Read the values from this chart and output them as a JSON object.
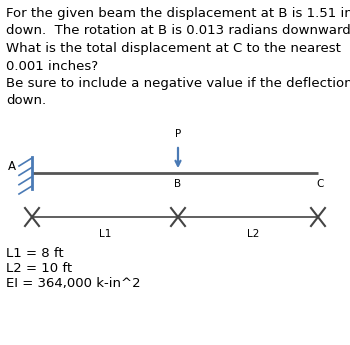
{
  "text_block": "For the given beam the displacement at B is 1.51 in\ndown.  The rotation at B is 0.013 radians downward.\nWhat is the total displacement at C to the nearest\n0.001 inches?\nBe sure to include a negative value if the deflection is\ndown.",
  "text_fontsize": 9.5,
  "bg_color": "#ffffff",
  "beam_color": "#555555",
  "support_color": "#4a7ab5",
  "arrow_color": "#4a7ab5",
  "label_color": "#000000",
  "dim_color": "#444444",
  "params": [
    "L1 = 8 ft",
    "L2 = 10 ft",
    "EI = 364,000 k-in^2"
  ],
  "params_fontsize": 9.5,
  "dim_labels": [
    "L1",
    "L2"
  ],
  "point_A_label": "A",
  "point_B_label": "B",
  "point_C_label": "C",
  "point_P_label": "P"
}
